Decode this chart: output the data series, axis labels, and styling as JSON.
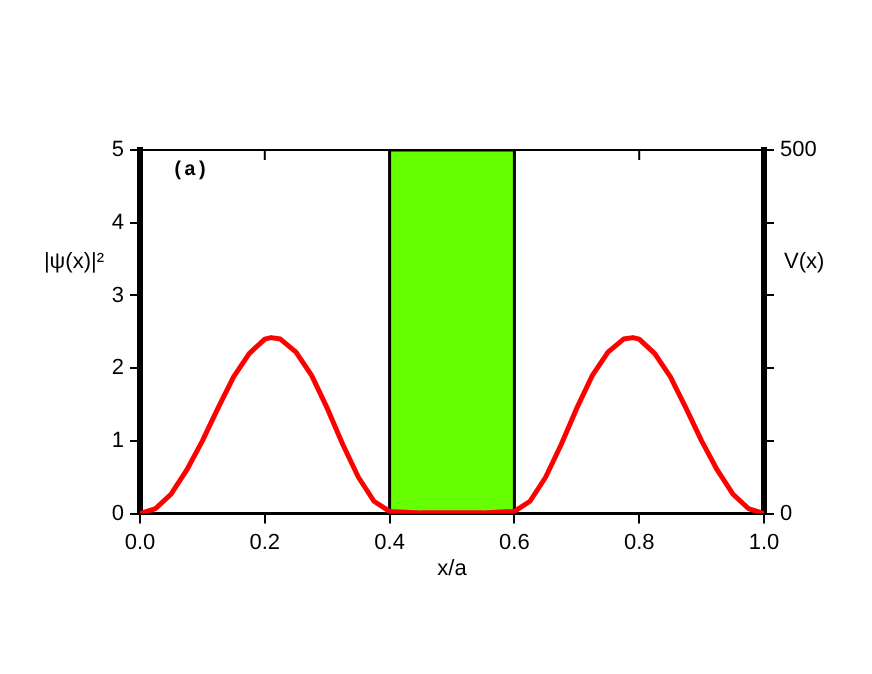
{
  "chart_data": {
    "type": "line",
    "xlabel": "x/a",
    "ylabel": "|ψ(x)|²",
    "y2label": "V(x)",
    "annotations": [
      "(a)"
    ],
    "xlim": [
      0,
      1
    ],
    "xticks": [
      {
        "value": 0,
        "label": "0.0"
      },
      {
        "value": 0.2,
        "label": "0.2"
      },
      {
        "value": 0.4,
        "label": "0.4"
      },
      {
        "value": 0.6,
        "label": "0.6"
      },
      {
        "value": 0.8,
        "label": "0.8"
      },
      {
        "value": 1,
        "label": "1.0"
      }
    ],
    "ylim": [
      0,
      5
    ],
    "yticks": [
      0,
      1,
      2,
      3,
      4,
      5
    ],
    "y2lim": [
      0,
      500
    ],
    "y2ticks": [
      0,
      {
        "value": 100,
        "label": null
      },
      {
        "value": 200,
        "label": null
      },
      {
        "value": 300,
        "label": null
      },
      {
        "value": 400,
        "label": null
      },
      500
    ],
    "grid": false,
    "legend": false,
    "marker": "none",
    "line_style": "solid",
    "series": [
      {
        "type": "area",
        "axis": "y2",
        "color": "#66ff00",
        "x": [
          0.4,
          0.4,
          0.6,
          0.6
        ],
        "values": [
          0,
          500,
          500,
          0
        ]
      },
      {
        "type": "line",
        "color": "#ff0000",
        "x": [
          0,
          0.025,
          0.05,
          0.075,
          0.1,
          0.125,
          0.15,
          0.175,
          0.2,
          0.21,
          0.225,
          0.25,
          0.275,
          0.3,
          0.325,
          0.35,
          0.375,
          0.4,
          0.45,
          0.5,
          0.55,
          0.6,
          0.625,
          0.65,
          0.675,
          0.7,
          0.725,
          0.75,
          0.775,
          0.79,
          0.8,
          0.825,
          0.85,
          0.875,
          0.9,
          0.925,
          0.95,
          0.975,
          1
        ],
        "values": [
          0,
          0.07,
          0.27,
          0.6,
          1.0,
          1.45,
          1.88,
          2.2,
          2.4,
          2.42,
          2.4,
          2.22,
          1.9,
          1.45,
          0.95,
          0.5,
          0.17,
          0.03,
          0.01,
          0.01,
          0.01,
          0.03,
          0.17,
          0.5,
          0.95,
          1.45,
          1.9,
          2.22,
          2.4,
          2.42,
          2.4,
          2.2,
          1.88,
          1.45,
          1.0,
          0.6,
          0.27,
          0.07,
          0
        ]
      }
    ]
  }
}
